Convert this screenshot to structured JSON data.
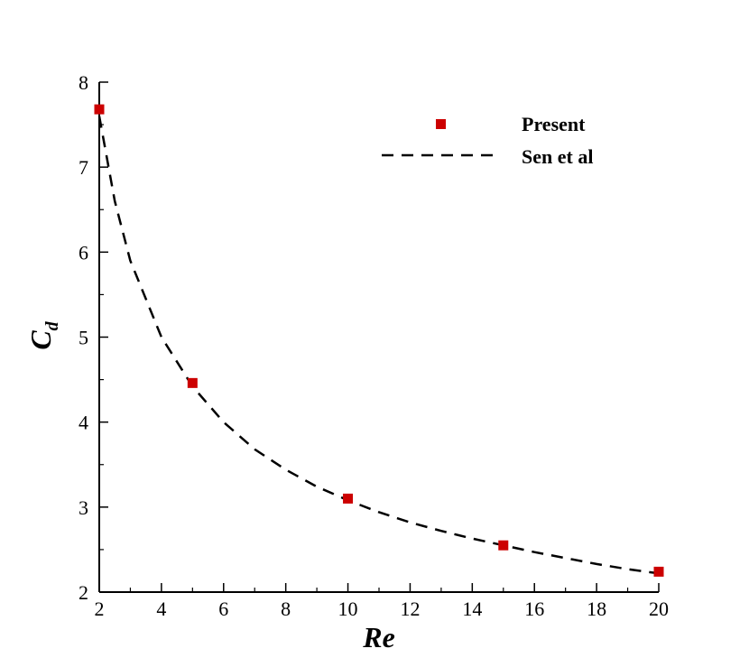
{
  "chart_data": {
    "type": "scatter",
    "xlabel": "Re",
    "ylabel": {
      "main": "C",
      "sub": "d"
    },
    "xlim": [
      2,
      20
    ],
    "ylim": [
      2,
      8
    ],
    "xticks": [
      2,
      4,
      6,
      8,
      10,
      12,
      14,
      16,
      18,
      20
    ],
    "yticks": [
      2,
      3,
      4,
      5,
      6,
      7,
      8
    ],
    "grid": false,
    "legend_position": "top-right",
    "series": [
      {
        "name": "Present",
        "style": "markers",
        "marker": "square",
        "color": "#cc0000",
        "x": [
          2,
          5,
          10,
          15,
          20
        ],
        "y": [
          7.68,
          4.46,
          3.1,
          2.55,
          2.24
        ]
      },
      {
        "name": "Sen et al",
        "style": "dashed-line",
        "color": "#000000",
        "x": [
          2,
          2.5,
          3,
          4,
          5,
          6,
          7,
          8,
          9,
          10,
          11,
          12,
          13,
          14,
          15,
          16,
          17,
          18,
          19,
          20
        ],
        "y": [
          7.6,
          6.6,
          5.9,
          5.0,
          4.42,
          4.0,
          3.68,
          3.44,
          3.24,
          3.08,
          2.94,
          2.82,
          2.72,
          2.63,
          2.55,
          2.47,
          2.4,
          2.33,
          2.27,
          2.22
        ]
      }
    ]
  }
}
